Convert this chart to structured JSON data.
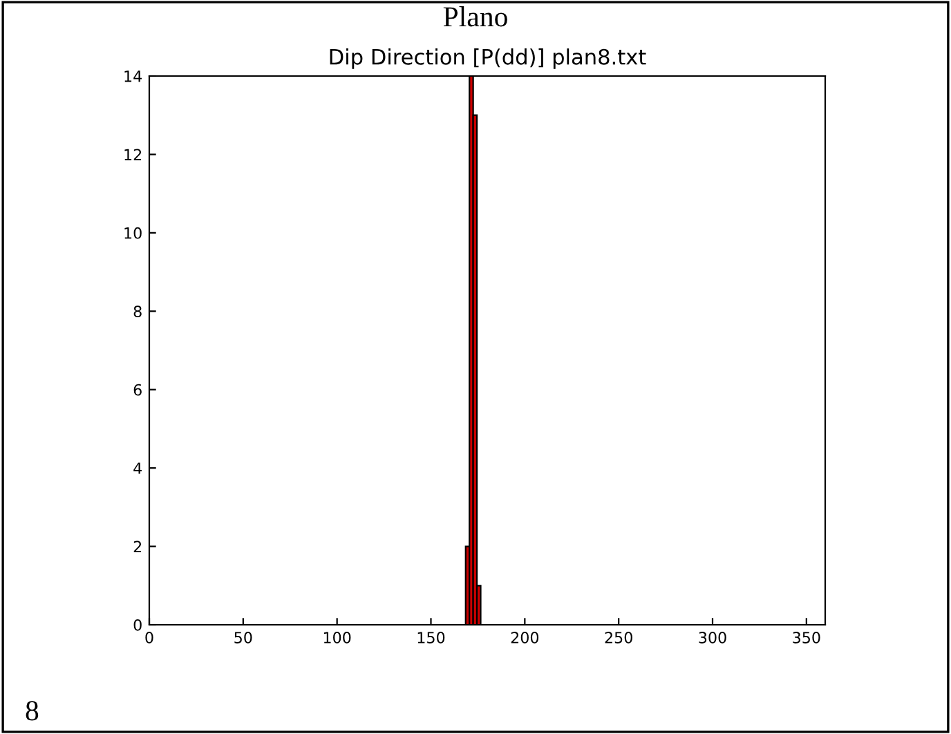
{
  "chart_data": {
    "type": "histogram",
    "title": "Dip Direction [P(dd)] plan8.txt",
    "annotations": [
      "Plano",
      "8"
    ],
    "bins": [
      168.5,
      170.5,
      172.5,
      174.5,
      176.5
    ],
    "values": [
      2,
      14,
      13,
      1
    ],
    "color": "#cc0000",
    "xlim": [
      0,
      360
    ],
    "xticks": [
      0,
      50,
      100,
      150,
      200,
      250,
      300,
      350
    ],
    "ylim": [
      0,
      14
    ],
    "yticks": [
      0,
      2,
      4,
      6,
      8,
      10,
      12,
      14
    ],
    "grid": false
  }
}
